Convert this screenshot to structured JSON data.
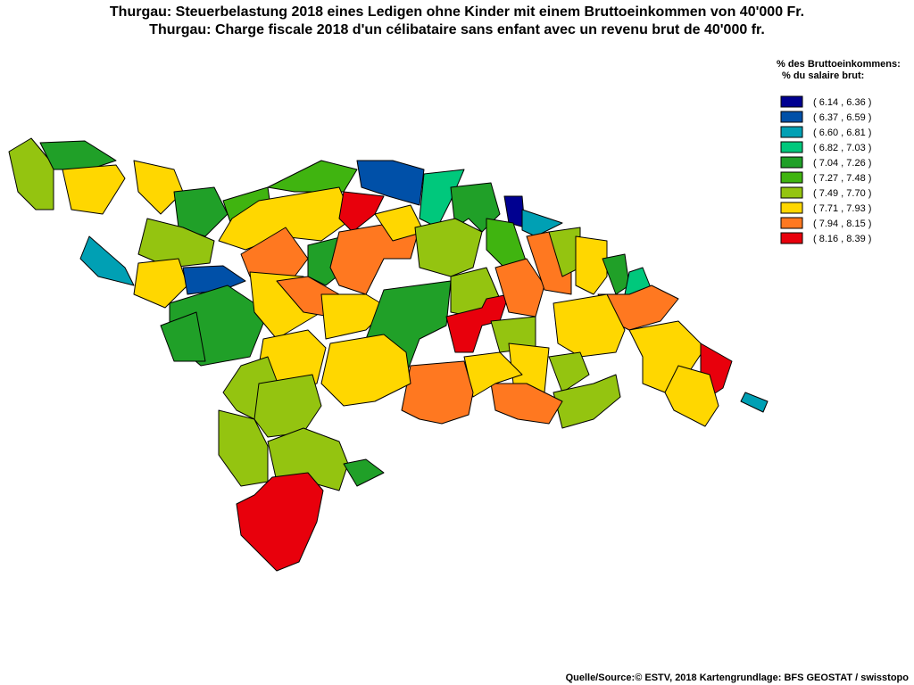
{
  "title_lines": [
    "Thurgau: Steuerbelastung 2018 eines Ledigen ohne Kinder mit einem Bruttoeinkommen von 40'000 Fr.",
    "Thurgau: Charge fiscale 2018 d'un célibataire sans enfant avec un revenu brut de 40'000 fr."
  ],
  "legend": {
    "title_lines": [
      "% des Bruttoeinkommens:",
      "% du salaire brut:"
    ],
    "entries": [
      {
        "label": "( 6.14 , 6.36 )",
        "color": "#000090"
      },
      {
        "label": "( 6.37 , 6.59 )",
        "color": "#0050a8"
      },
      {
        "label": "( 6.60 , 6.81 )",
        "color": "#00a0b4"
      },
      {
        "label": "( 6.82 , 7.03 )",
        "color": "#00c87c"
      },
      {
        "label": "( 7.04 , 7.26 )",
        "color": "#20a028"
      },
      {
        "label": "( 7.27 , 7.48 )",
        "color": "#40b410"
      },
      {
        "label": "( 7.49 , 7.70 )",
        "color": "#94c410"
      },
      {
        "label": "( 7.71 , 7.93 )",
        "color": "#ffd700"
      },
      {
        "label": "( 7.94 , 8.15 )",
        "color": "#ff7820"
      },
      {
        "label": "( 8.16 , 8.39 )",
        "color": "#e8000c"
      }
    ]
  },
  "source": "Quelle/Source:© ESTV, 2018 Kartengrundlage: BFS GEOSTAT / swisstopo"
}
